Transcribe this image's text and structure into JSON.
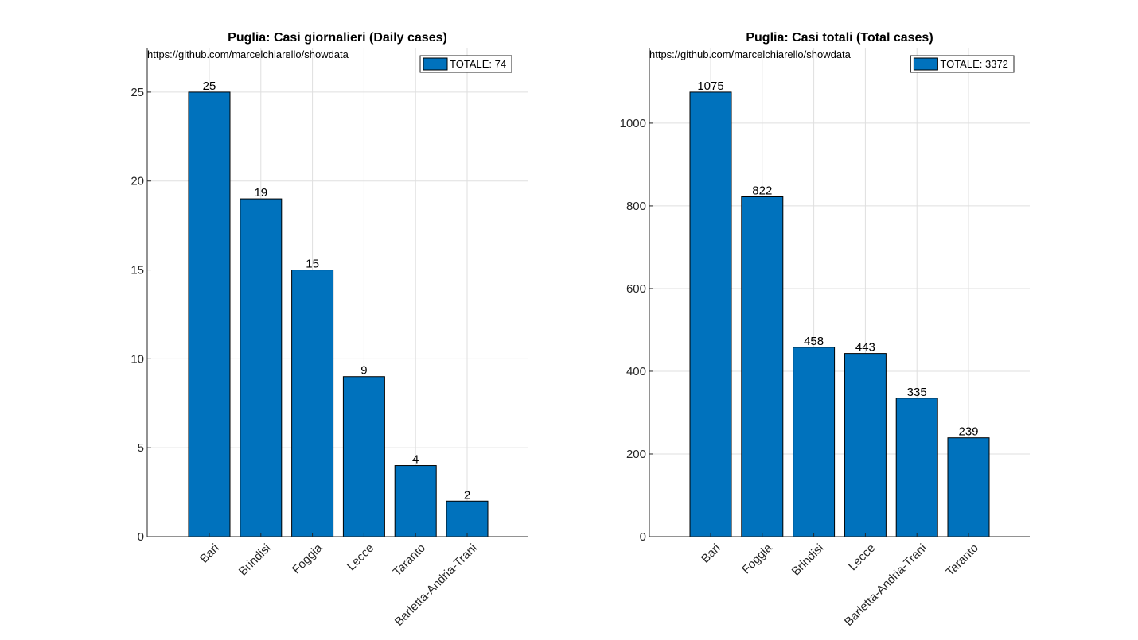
{
  "colors": {
    "bar": "#0072bd",
    "grid": "#dfdfdf",
    "axis": "#262626"
  },
  "chart_data": [
    {
      "type": "bar",
      "title": "Puglia: Casi giornalieri (Daily cases)",
      "source": "https://github.com/marcelchiarello/showdata",
      "legend": "TOTALE: 74",
      "legend_position": "top-right",
      "categories": [
        "Bari",
        "Brindisi",
        "Foggia",
        "Lecce",
        "Taranto",
        "Barletta-Andria-Trani"
      ],
      "values": [
        25,
        19,
        15,
        9,
        4,
        2
      ],
      "data_labels": [
        "25",
        "19",
        "15",
        "9",
        "4",
        "2"
      ],
      "ylim": [
        0,
        27.5
      ],
      "yticks": [
        0,
        5,
        10,
        15,
        20,
        25
      ],
      "grid": true
    },
    {
      "type": "bar",
      "title": "Puglia: Casi totali (Total cases)",
      "source": "https://github.com/marcelchiarello/showdata",
      "legend": "TOTALE: 3372",
      "legend_position": "top-right",
      "categories": [
        "Bari",
        "Foggia",
        "Brindisi",
        "Lecce",
        "Barletta-Andria-Trani",
        "Taranto"
      ],
      "values": [
        1075,
        822,
        458,
        443,
        335,
        239
      ],
      "data_labels": [
        "1075",
        "822",
        "458",
        "443",
        "335",
        "239"
      ],
      "ylim": [
        0,
        1182.5
      ],
      "yticks": [
        0,
        200,
        400,
        600,
        800,
        1000
      ],
      "grid": true
    }
  ]
}
